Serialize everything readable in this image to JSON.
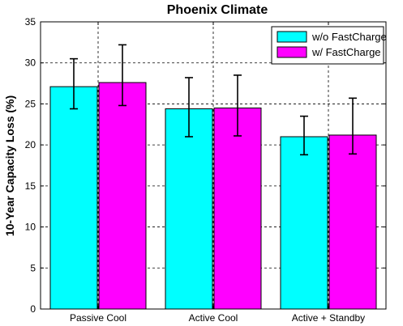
{
  "chart_data": {
    "type": "bar",
    "title": "Phoenix Climate",
    "xlabel": "",
    "ylabel": "10-Year Capacity Loss (%)",
    "ylim": [
      0,
      35
    ],
    "yticks": [
      0,
      5,
      10,
      15,
      20,
      25,
      30,
      35
    ],
    "categories": [
      "Passive Cool",
      "Active Cool",
      "Active + Standby"
    ],
    "grid": true,
    "legend_position": "top-right",
    "series": [
      {
        "name": "w/o FastCharge",
        "color": "#00ffff",
        "values": [
          27.1,
          24.4,
          21.0
        ],
        "error_low": [
          24.4,
          21.0,
          18.8
        ],
        "error_high": [
          30.5,
          28.2,
          23.5
        ]
      },
      {
        "name": "w/ FastCharge",
        "color": "#ff00ff",
        "values": [
          27.6,
          24.5,
          21.2
        ],
        "error_low": [
          24.8,
          21.1,
          18.9
        ],
        "error_high": [
          32.2,
          28.5,
          25.7
        ]
      }
    ]
  }
}
